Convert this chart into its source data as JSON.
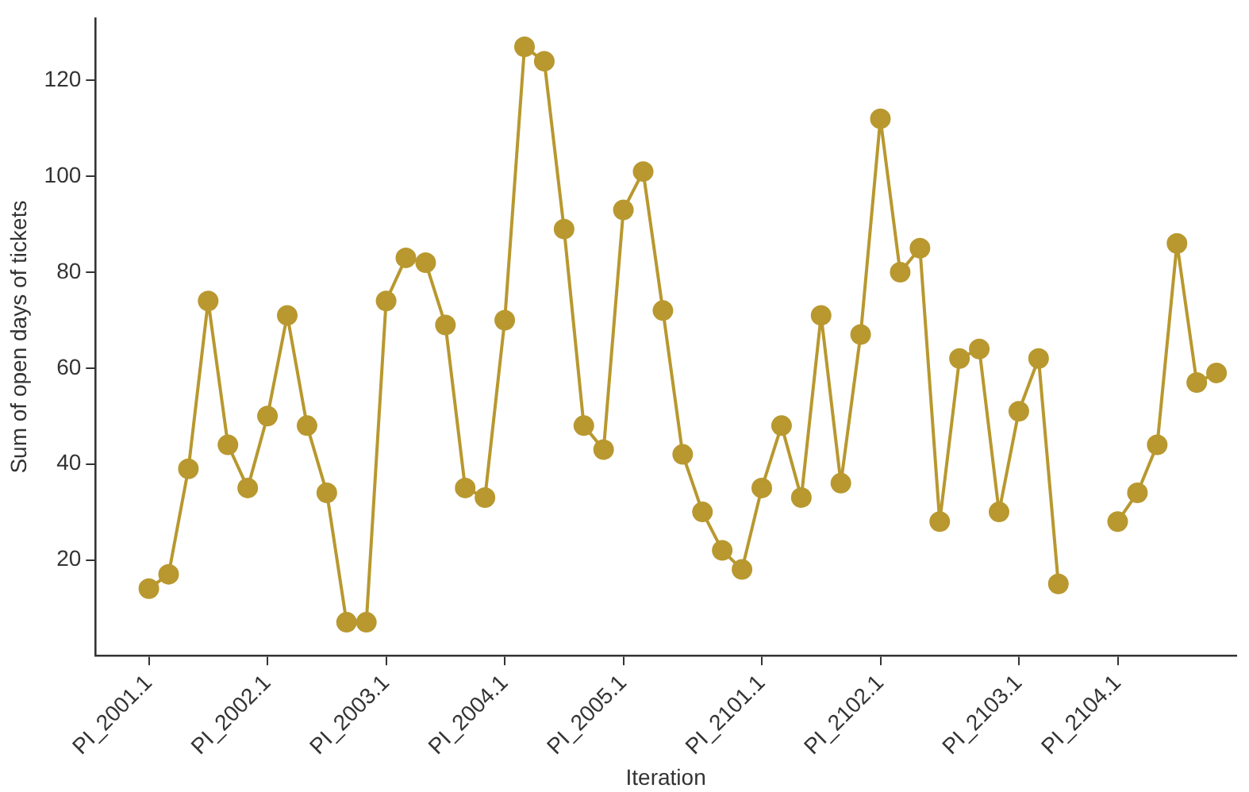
{
  "chart_data": {
    "type": "line",
    "xlabel": "Iteration",
    "ylabel": "Sum of open days of tickets",
    "categories": [
      "PI_2001.1",
      null,
      null,
      null,
      null,
      null,
      "PI_2002.1",
      null,
      null,
      null,
      null,
      null,
      "PI_2003.1",
      null,
      null,
      null,
      null,
      null,
      "PI_2004.1",
      null,
      null,
      null,
      null,
      null,
      "PI_2005.1",
      null,
      null,
      null,
      null,
      null,
      null,
      "PI_2101.1",
      null,
      null,
      null,
      null,
      null,
      "PI_2102.1",
      null,
      null,
      null,
      null,
      null,
      null,
      "PI_2103.1",
      null,
      null,
      null,
      null,
      "PI_2104.1",
      null,
      null,
      null,
      null,
      null
    ],
    "series": [
      {
        "color": "#b8982f",
        "values": [
          14,
          17,
          39,
          74,
          44,
          35,
          50,
          71,
          48,
          34,
          7,
          7,
          74,
          83,
          82,
          69,
          35,
          33,
          70,
          127,
          124,
          89,
          48,
          43,
          93,
          101,
          72,
          42,
          30,
          22,
          18,
          35,
          48,
          33,
          71,
          36,
          67,
          112,
          80,
          85,
          28,
          62,
          64,
          30,
          51,
          62,
          15,
          null,
          null,
          28,
          34,
          44,
          86,
          57,
          59
        ]
      }
    ],
    "ylim": [
      0,
      133
    ],
    "yticks": [
      20,
      40,
      60,
      80,
      100,
      120
    ],
    "grid": false,
    "legend": false,
    "marker": "circle",
    "line_style": "solid"
  }
}
